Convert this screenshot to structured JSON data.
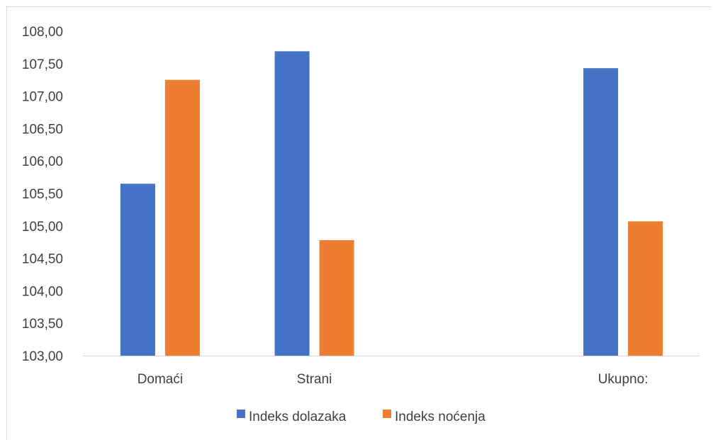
{
  "chart_data": {
    "type": "bar",
    "categories": [
      "Domaći",
      "Strani",
      "",
      "Ukupno:"
    ],
    "series": [
      {
        "name": "Indeks dolazaka",
        "color": "#4472c4",
        "values": [
          105.65,
          107.69,
          null,
          107.43
        ]
      },
      {
        "name": "Indeks noćenja",
        "color": "#ed7d31",
        "values": [
          107.25,
          104.78,
          null,
          105.07
        ]
      }
    ],
    "ylim": [
      103.0,
      108.0
    ],
    "yticks": [
      "103,00",
      "103,50",
      "104,00",
      "104,50",
      "105,00",
      "105,50",
      "106,00",
      "106,50",
      "107,00",
      "107,50",
      "108,00"
    ],
    "ytick_values": [
      103.0,
      103.5,
      104.0,
      104.5,
      105.0,
      105.5,
      106.0,
      106.5,
      107.0,
      107.5,
      108.0
    ],
    "grid": false,
    "legend_position": "bottom"
  }
}
